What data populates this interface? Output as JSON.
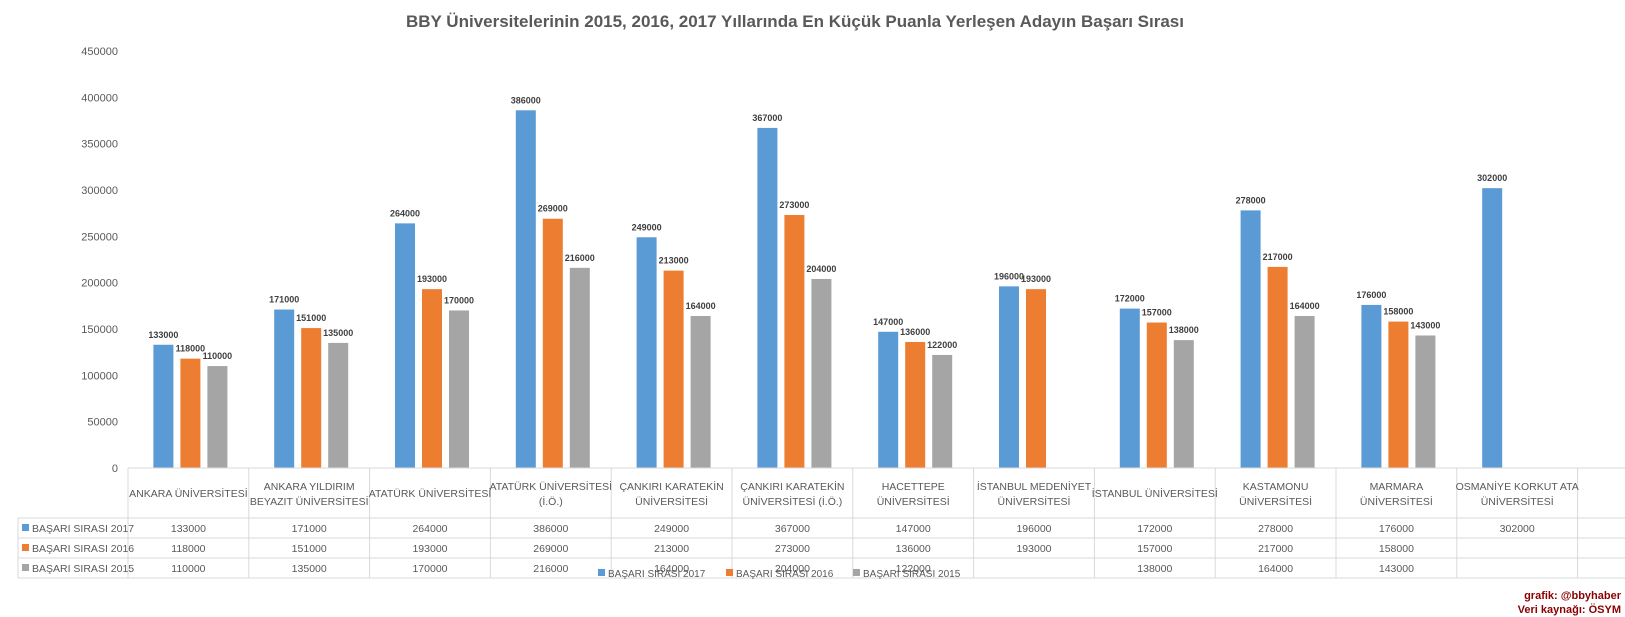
{
  "chart_data": {
    "type": "bar",
    "title": "BBY Üniversitelerinin 2015, 2016, 2017 Yıllarında En Küçük Puanla Yerleşen Adayın Başarı Sırası",
    "xlabel": "",
    "ylabel": "",
    "ylim": [
      0,
      450000
    ],
    "yticks": [
      0,
      50000,
      100000,
      150000,
      200000,
      250000,
      300000,
      350000,
      400000,
      450000
    ],
    "grid": false,
    "legend_position": "bottom",
    "categories": [
      [
        "ANKARA ÜNİVERSİTESİ"
      ],
      [
        "ANKARA YILDIRIM",
        "BEYAZIT ÜNİVERSİTESİ"
      ],
      [
        "ATATÜRK ÜNİVERSİTESİ"
      ],
      [
        "ATATÜRK ÜNİVERSİTESİ",
        "(İ.Ö.)"
      ],
      [
        "ÇANKIRI KARATEKİN",
        "ÜNİVERSİTESİ"
      ],
      [
        "ÇANKIRI KARATEKİN",
        "ÜNİVERSİTESİ (İ.Ö.)"
      ],
      [
        "HACETTEPE",
        "ÜNİVERSİTESİ"
      ],
      [
        "İSTANBUL MEDENİYET",
        "ÜNİVERSİTESİ"
      ],
      [
        "İSTANBUL ÜNİVERSİTESİ"
      ],
      [
        "KASTAMONU",
        "ÜNİVERSİTESİ"
      ],
      [
        "MARMARA",
        "ÜNİVERSİTESİ"
      ],
      [
        "OSMANİYE KORKUT ATA",
        "ÜNİVERSİTESİ"
      ]
    ],
    "series": [
      {
        "name": "BAŞARI SIRASI 2017",
        "color": "#5b9bd5",
        "values": [
          133000,
          171000,
          264000,
          386000,
          249000,
          367000,
          147000,
          196000,
          172000,
          278000,
          176000,
          302000
        ]
      },
      {
        "name": "BAŞARI SIRASI 2016",
        "color": "#ed7d31",
        "values": [
          118000,
          151000,
          193000,
          269000,
          213000,
          273000,
          136000,
          193000,
          157000,
          217000,
          158000,
          null
        ]
      },
      {
        "name": "BAŞARI SIRASI 2015",
        "color": "#a5a5a5",
        "values": [
          110000,
          135000,
          170000,
          216000,
          164000,
          204000,
          122000,
          null,
          138000,
          164000,
          143000,
          null
        ]
      }
    ]
  },
  "credits": {
    "author": "grafik: @bbyhaber",
    "source": "Veri kaynağı: ÖSYM"
  }
}
